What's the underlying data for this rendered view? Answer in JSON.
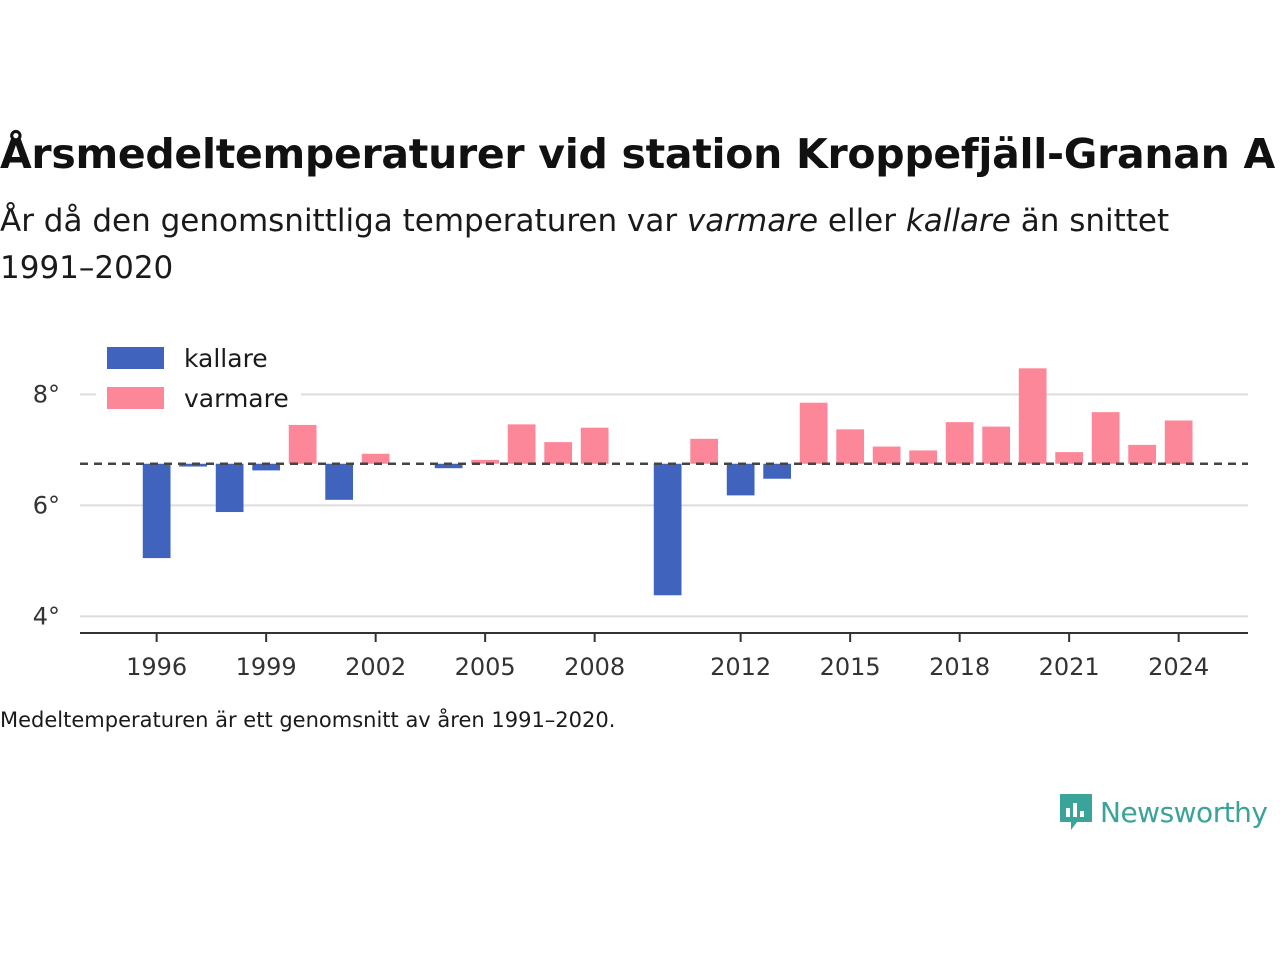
{
  "title": "Årsmedeltemperaturer vid station Kroppefjäll-Granan A",
  "subtitle": {
    "part1": "År då den genomsnittliga temperaturen var ",
    "warm_word": "varmare",
    "part2": " eller ",
    "cold_word": "kallare",
    "part3": " än snittet 1991–2020"
  },
  "footnote": "Medeltemperaturen är ett genomsnitt av åren 1991–2020.",
  "logo": {
    "text": "Newsworthy",
    "icon": "bar-chart-speech-bubble-icon",
    "color": "#3aa39a"
  },
  "colors": {
    "cold": "#4063bd",
    "warm": "#fc8799",
    "baseline": "#444444",
    "grid": "#dddddd",
    "axis": "#333333"
  },
  "chart_data": {
    "type": "bar",
    "baseline": 6.75,
    "ylim": [
      3.7,
      8.8
    ],
    "yticks": [
      4,
      6,
      8
    ],
    "ytick_suffix": "°",
    "xlim": [
      1993.9,
      2025.9
    ],
    "xticks": [
      1996,
      1999,
      2002,
      2005,
      2008,
      2012,
      2015,
      2018,
      2021,
      2024
    ],
    "legend": {
      "position": "top-left",
      "entries": [
        {
          "key": "cold",
          "label": "kallare"
        },
        {
          "key": "warm",
          "label": "varmare"
        }
      ]
    },
    "grid": true,
    "x": [
      1996,
      1997,
      1998,
      1999,
      2000,
      2001,
      2002,
      2004,
      2005,
      2006,
      2007,
      2008,
      2010,
      2011,
      2012,
      2013,
      2014,
      2015,
      2016,
      2017,
      2018,
      2019,
      2020,
      2021,
      2022,
      2023,
      2024
    ],
    "values": [
      5.05,
      6.7,
      5.88,
      6.63,
      7.45,
      6.1,
      6.93,
      6.67,
      6.82,
      7.46,
      7.14,
      7.4,
      4.38,
      7.2,
      6.18,
      6.48,
      7.85,
      7.37,
      7.06,
      6.99,
      7.5,
      7.42,
      8.47,
      6.96,
      7.68,
      7.09,
      7.53
    ]
  }
}
